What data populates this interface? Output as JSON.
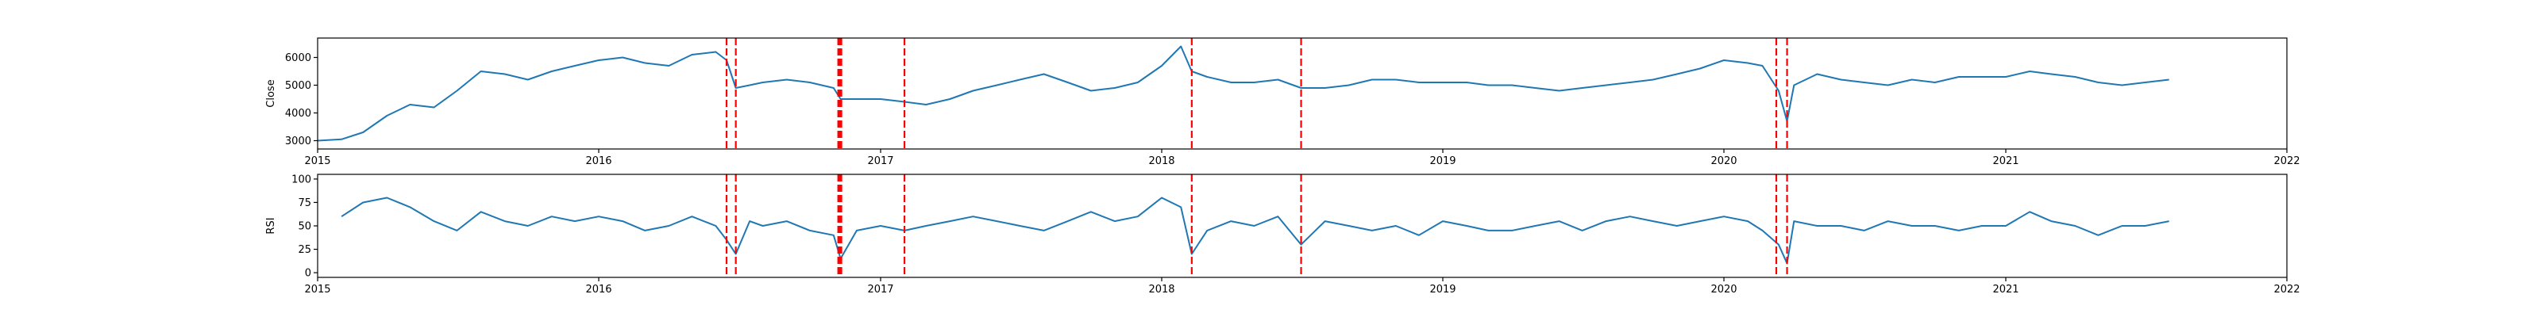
{
  "chart_data": [
    {
      "type": "line",
      "ylabel": "Close",
      "xlim": [
        "2015-01-01",
        "2022-01-01"
      ],
      "ylim": [
        2700,
        6700
      ],
      "xticks": [
        "2015",
        "2016",
        "2017",
        "2018",
        "2019",
        "2020",
        "2021",
        "2022"
      ],
      "yticks": [
        3000,
        4000,
        5000,
        6000
      ],
      "grid": false,
      "series": [
        {
          "color": "#1f77b4",
          "x": [
            "2015-01-01",
            "2015-02-01",
            "2015-03-01",
            "2015-04-01",
            "2015-05-01",
            "2015-06-01",
            "2015-07-01",
            "2015-08-01",
            "2015-09-01",
            "2015-10-01",
            "2015-11-01",
            "2015-12-01",
            "2016-01-01",
            "2016-02-01",
            "2016-03-01",
            "2016-04-01",
            "2016-05-01",
            "2016-06-01",
            "2016-06-15",
            "2016-06-27",
            "2016-07-15",
            "2016-08-01",
            "2016-09-01",
            "2016-10-01",
            "2016-11-01",
            "2016-11-10",
            "2016-12-01",
            "2017-01-01",
            "2017-02-01",
            "2017-03-01",
            "2017-04-01",
            "2017-05-01",
            "2017-06-01",
            "2017-07-01",
            "2017-08-01",
            "2017-09-01",
            "2017-10-01",
            "2017-11-01",
            "2017-12-01",
            "2018-01-01",
            "2018-01-26",
            "2018-02-09",
            "2018-03-01",
            "2018-04-01",
            "2018-05-01",
            "2018-06-01",
            "2018-07-01",
            "2018-08-01",
            "2018-09-01",
            "2018-10-01",
            "2018-11-01",
            "2018-12-01",
            "2019-01-01",
            "2019-02-01",
            "2019-03-01",
            "2019-04-01",
            "2019-05-01",
            "2019-06-01",
            "2019-07-01",
            "2019-08-01",
            "2019-09-01",
            "2019-10-01",
            "2019-11-01",
            "2019-12-01",
            "2020-01-01",
            "2020-02-01",
            "2020-02-20",
            "2020-03-12",
            "2020-03-23",
            "2020-04-01",
            "2020-05-01",
            "2020-06-01",
            "2020-07-01",
            "2020-08-01",
            "2020-09-01",
            "2020-10-01",
            "2020-11-01",
            "2020-12-01",
            "2021-01-01",
            "2021-02-01",
            "2021-03-01",
            "2021-04-01",
            "2021-05-01",
            "2021-06-01",
            "2021-07-01",
            "2021-08-01"
          ],
          "values": [
            3000,
            3050,
            3300,
            3900,
            4300,
            4200,
            4800,
            5500,
            5400,
            5200,
            5500,
            5700,
            5900,
            6000,
            5800,
            5700,
            6100,
            6200,
            5900,
            4900,
            5000,
            5100,
            5200,
            5100,
            4900,
            4500,
            4500,
            4500,
            4400,
            4300,
            4500,
            4800,
            5000,
            5200,
            5400,
            5100,
            4800,
            4900,
            5100,
            5700,
            6400,
            5500,
            5300,
            5100,
            5100,
            5200,
            4900,
            4900,
            5000,
            5200,
            5200,
            5100,
            5100,
            5100,
            5000,
            5000,
            4900,
            4800,
            4900,
            5000,
            5100,
            5200,
            5400,
            5600,
            5900,
            5800,
            5700,
            4800,
            3700,
            5000,
            5400,
            5200,
            5100,
            5000,
            5200,
            5100,
            5300,
            5300,
            5300,
            5500,
            5400,
            5300,
            5100,
            5000,
            5100,
            5200
          ]
        }
      ],
      "vlines": [
        "2016-06-15",
        "2016-06-27",
        "2016-11-07",
        "2016-11-09",
        "2016-11-10",
        "2016-11-11",
        "2017-02-01",
        "2018-02-09",
        "2018-07-01",
        "2020-03-09",
        "2020-03-23"
      ],
      "vline_color": "#ff0000"
    },
    {
      "type": "line",
      "ylabel": "RSI",
      "xlim": [
        "2015-01-01",
        "2022-01-01"
      ],
      "ylim": [
        -5,
        105
      ],
      "xticks": [
        "2015",
        "2016",
        "2017",
        "2018",
        "2019",
        "2020",
        "2021",
        "2022"
      ],
      "yticks": [
        0,
        25,
        50,
        75,
        100
      ],
      "grid": false,
      "series": [
        {
          "color": "#1f77b4",
          "x": [
            "2015-02-01",
            "2015-03-01",
            "2015-04-01",
            "2015-05-01",
            "2015-06-01",
            "2015-07-01",
            "2015-08-01",
            "2015-09-01",
            "2015-10-01",
            "2015-11-01",
            "2015-12-01",
            "2016-01-01",
            "2016-02-01",
            "2016-03-01",
            "2016-04-01",
            "2016-05-01",
            "2016-06-01",
            "2016-06-15",
            "2016-06-27",
            "2016-07-15",
            "2016-08-01",
            "2016-09-01",
            "2016-10-01",
            "2016-11-01",
            "2016-11-10",
            "2016-12-01",
            "2017-01-01",
            "2017-02-01",
            "2017-03-01",
            "2017-04-01",
            "2017-05-01",
            "2017-06-01",
            "2017-07-01",
            "2017-08-01",
            "2017-09-01",
            "2017-10-01",
            "2017-11-01",
            "2017-12-01",
            "2018-01-01",
            "2018-01-26",
            "2018-02-09",
            "2018-03-01",
            "2018-04-01",
            "2018-05-01",
            "2018-06-01",
            "2018-07-01",
            "2018-08-01",
            "2018-09-01",
            "2018-10-01",
            "2018-11-01",
            "2018-12-01",
            "2019-01-01",
            "2019-02-01",
            "2019-03-01",
            "2019-04-01",
            "2019-05-01",
            "2019-06-01",
            "2019-07-01",
            "2019-08-01",
            "2019-09-01",
            "2019-10-01",
            "2019-11-01",
            "2019-12-01",
            "2020-01-01",
            "2020-02-01",
            "2020-02-20",
            "2020-03-12",
            "2020-03-23",
            "2020-04-01",
            "2020-05-01",
            "2020-06-01",
            "2020-07-01",
            "2020-08-01",
            "2020-09-01",
            "2020-10-01",
            "2020-11-01",
            "2020-12-01",
            "2021-01-01",
            "2021-02-01",
            "2021-03-01",
            "2021-04-01",
            "2021-05-01",
            "2021-06-01",
            "2021-07-01",
            "2021-08-01"
          ],
          "values": [
            60,
            75,
            80,
            70,
            55,
            45,
            65,
            55,
            50,
            60,
            55,
            60,
            55,
            45,
            50,
            60,
            50,
            35,
            20,
            55,
            50,
            55,
            45,
            40,
            15,
            45,
            50,
            45,
            50,
            55,
            60,
            55,
            50,
            45,
            55,
            65,
            55,
            60,
            80,
            70,
            20,
            45,
            55,
            50,
            60,
            30,
            55,
            50,
            45,
            50,
            40,
            55,
            50,
            45,
            45,
            50,
            55,
            45,
            55,
            60,
            55,
            50,
            55,
            60,
            55,
            45,
            30,
            10,
            55,
            50,
            50,
            45,
            55,
            50,
            50,
            45,
            50,
            50,
            65,
            55,
            50,
            40,
            50,
            50,
            55
          ]
        }
      ],
      "vlines": [
        "2016-06-15",
        "2016-06-27",
        "2016-11-07",
        "2016-11-09",
        "2016-11-10",
        "2016-11-11",
        "2017-02-01",
        "2018-02-09",
        "2018-07-01",
        "2020-03-09",
        "2020-03-23"
      ],
      "vline_color": "#ff0000"
    }
  ]
}
